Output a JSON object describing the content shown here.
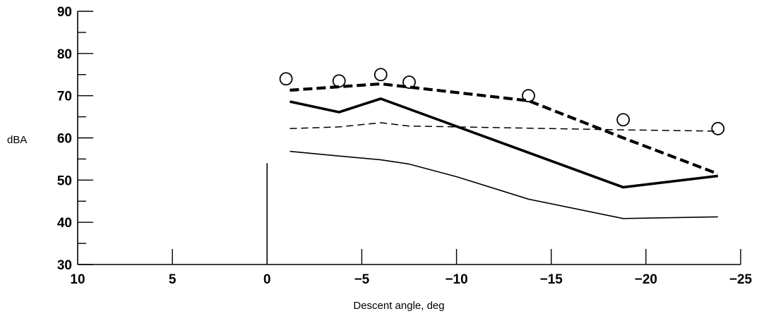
{
  "chart_data": {
    "type": "line",
    "title": "",
    "xlabel": "Descent angle, deg",
    "ylabel": "dBA",
    "xlim": [
      10,
      -25
    ],
    "ylim": [
      30,
      90
    ],
    "x_major_ticks": [
      10,
      5,
      0,
      -5,
      -10,
      -15,
      -20,
      -25
    ],
    "x_tick_labels": [
      "10",
      "5",
      "0",
      "−5",
      "−10",
      "−15",
      "−20",
      "−25"
    ],
    "y_major_ticks": [
      30,
      40,
      50,
      60,
      70,
      80,
      90
    ],
    "y_tick_labels": [
      "30",
      "40",
      "50",
      "60",
      "70",
      "80",
      "90"
    ],
    "y_minor_step": 5,
    "vertical_reference": {
      "x": 0,
      "y_top": 54
    },
    "grid": false,
    "legend": "none",
    "series": [
      {
        "style": "circles",
        "points": [
          [
            -1,
            74
          ],
          [
            -3.8,
            73.5
          ],
          [
            -6,
            75
          ],
          [
            -7.5,
            73.2
          ],
          [
            -13.8,
            70
          ],
          [
            -18.8,
            64.3
          ],
          [
            -23.8,
            62.2
          ]
        ]
      },
      {
        "style": "thick-dashed",
        "points": [
          [
            -1.2,
            71.3
          ],
          [
            -6,
            72.8
          ],
          [
            -13.8,
            68.8
          ],
          [
            -18.8,
            60
          ],
          [
            -23.8,
            51.5
          ]
        ]
      },
      {
        "style": "thick-solid",
        "points": [
          [
            -1.2,
            68.6
          ],
          [
            -3.8,
            66.1
          ],
          [
            -6,
            69.3
          ],
          [
            -18.8,
            48.3
          ],
          [
            -23.8,
            51
          ]
        ]
      },
      {
        "style": "thin-dashed",
        "points": [
          [
            -1.2,
            62.2
          ],
          [
            -3.8,
            62.6
          ],
          [
            -6,
            63.6
          ],
          [
            -7.5,
            62.8
          ],
          [
            -13.8,
            62.3
          ],
          [
            -18.8,
            61.9
          ],
          [
            -23.8,
            61.6
          ]
        ]
      },
      {
        "style": "thin-solid",
        "points": [
          [
            -1.2,
            56.8
          ],
          [
            -3.8,
            55.7
          ],
          [
            -6,
            54.8
          ],
          [
            -7.5,
            53.8
          ],
          [
            -10,
            50.8
          ],
          [
            -13.8,
            45.5
          ],
          [
            -18.8,
            40.9
          ],
          [
            -23.8,
            41.3
          ]
        ]
      }
    ]
  }
}
